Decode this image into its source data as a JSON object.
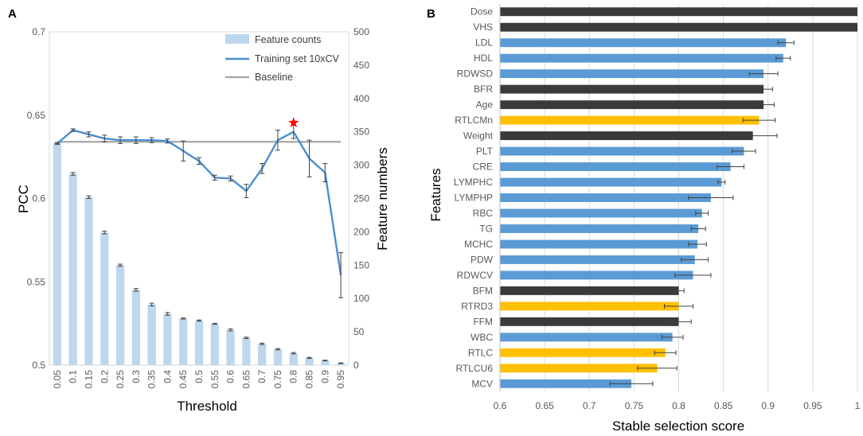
{
  "chart_data": [
    {
      "panel": "A",
      "type": "bar+line",
      "categories": [
        "0.05",
        "0.1",
        "0.15",
        "0.2",
        "0.25",
        "0.3",
        "0.35",
        "0.4",
        "0.45",
        "0.5",
        "0.55",
        "0.6",
        "0.65",
        "0.7",
        "0.75",
        "0.8",
        "0.85",
        "0.9",
        "0.95"
      ],
      "xlabel": "Threshold",
      "ylabel": "PCC",
      "y2label": "Feature numbers",
      "ylim": [
        0.5,
        0.7
      ],
      "yticks": [
        "0.5",
        "0.55",
        "0.6",
        "0.65",
        "0.7"
      ],
      "y2lim": [
        0,
        500
      ],
      "y2ticks": [
        "0",
        "50",
        "100",
        "150",
        "200",
        "250",
        "300",
        "350",
        "400",
        "450",
        "500"
      ],
      "series": [
        {
          "name": "Feature counts",
          "type": "bar",
          "axis": "right",
          "color": "#bdd7ee",
          "values": [
            333,
            287,
            252,
            199,
            150,
            113,
            91,
            77,
            70,
            67,
            62,
            53,
            41,
            32,
            24,
            18,
            11,
            7,
            3
          ],
          "errors": [
            1,
            2,
            2,
            2,
            1.5,
            2,
            2,
            2,
            0.8,
            0.8,
            0.8,
            1.5,
            1,
            1,
            1,
            1,
            0.8,
            0.5,
            0.5
          ]
        },
        {
          "name": "Training set 10xCV",
          "type": "line",
          "axis": "left",
          "color": "#4a8fd1",
          "values": [
            0.633,
            0.641,
            0.6385,
            0.636,
            0.635,
            0.635,
            0.635,
            0.6345,
            0.6285,
            0.6225,
            0.6125,
            0.612,
            0.6045,
            0.618,
            0.635,
            0.64,
            0.624,
            0.6155,
            0.554
          ],
          "errors": [
            0.0005,
            0.0008,
            0.0015,
            0.002,
            0.002,
            0.002,
            0.0015,
            0.0012,
            0.006,
            0.002,
            0.0015,
            0.0015,
            0.004,
            0.003,
            0.006,
            0.004,
            0.011,
            0.0055,
            0.0135
          ]
        },
        {
          "name": "Baseline",
          "type": "line",
          "axis": "left",
          "color": "#a6a6a6",
          "values": [
            0.634,
            0.634,
            0.634,
            0.634,
            0.634,
            0.634,
            0.634,
            0.634,
            0.634,
            0.634,
            0.634,
            0.634,
            0.634,
            0.634,
            0.634,
            0.634,
            0.634,
            0.634,
            0.634
          ]
        }
      ],
      "annotations": [
        {
          "type": "star",
          "color": "#ff0000",
          "category": "0.8",
          "value": 0.6455
        }
      ],
      "legend": "top-right"
    },
    {
      "panel": "B",
      "type": "bar",
      "orientation": "horizontal",
      "ylabel": "Features",
      "xlabel": "Stable selection score",
      "xlim": [
        0.6,
        1.0
      ],
      "xticks": [
        "0.6",
        "0.65",
        "0.7",
        "0.75",
        "0.8",
        "0.85",
        "0.9",
        "0.95",
        "1"
      ],
      "colors": {
        "blue": "#5b9bd5",
        "dark": "#3a3a3a",
        "yellow": "#ffc000"
      },
      "features": [
        {
          "label": "Dose",
          "value": 1.0,
          "error": 0.0,
          "color": "dark"
        },
        {
          "label": "VHS",
          "value": 1.0,
          "error": 0.0,
          "color": "dark"
        },
        {
          "label": "LDL",
          "value": 0.92,
          "error": 0.009,
          "color": "blue"
        },
        {
          "label": "HDL",
          "value": 0.917,
          "error": 0.008,
          "color": "blue"
        },
        {
          "label": "RDWSD",
          "value": 0.895,
          "error": 0.016,
          "color": "blue"
        },
        {
          "label": "BFR",
          "value": 0.895,
          "error": 0.01,
          "color": "dark"
        },
        {
          "label": "Age",
          "value": 0.895,
          "error": 0.012,
          "color": "dark"
        },
        {
          "label": "RTLCMn",
          "value": 0.89,
          "error": 0.018,
          "color": "yellow"
        },
        {
          "label": "Weight",
          "value": 0.883,
          "error": 0.027,
          "color": "dark"
        },
        {
          "label": "PLT",
          "value": 0.873,
          "error": 0.013,
          "color": "blue"
        },
        {
          "label": "CRE",
          "value": 0.858,
          "error": 0.015,
          "color": "blue"
        },
        {
          "label": "LYMPHC",
          "value": 0.848,
          "error": 0.004,
          "color": "blue"
        },
        {
          "label": "LYMPHP",
          "value": 0.836,
          "error": 0.025,
          "color": "blue"
        },
        {
          "label": "RBC",
          "value": 0.826,
          "error": 0.007,
          "color": "blue"
        },
        {
          "label": "TG",
          "value": 0.822,
          "error": 0.008,
          "color": "blue"
        },
        {
          "label": "MCHC",
          "value": 0.821,
          "error": 0.01,
          "color": "blue"
        },
        {
          "label": "PDW",
          "value": 0.818,
          "error": 0.015,
          "color": "blue"
        },
        {
          "label": "RDWCV",
          "value": 0.816,
          "error": 0.02,
          "color": "blue"
        },
        {
          "label": "BFM",
          "value": 0.8,
          "error": 0.006,
          "color": "dark"
        },
        {
          "label": "RTRD3",
          "value": 0.8,
          "error": 0.016,
          "color": "yellow"
        },
        {
          "label": "FFM",
          "value": 0.8,
          "error": 0.014,
          "color": "dark"
        },
        {
          "label": "WBC",
          "value": 0.793,
          "error": 0.012,
          "color": "blue"
        },
        {
          "label": "RTLC",
          "value": 0.785,
          "error": 0.012,
          "color": "yellow"
        },
        {
          "label": "RTLCU6",
          "value": 0.776,
          "error": 0.022,
          "color": "yellow"
        },
        {
          "label": "MCV",
          "value": 0.747,
          "error": 0.024,
          "color": "blue"
        }
      ]
    }
  ]
}
